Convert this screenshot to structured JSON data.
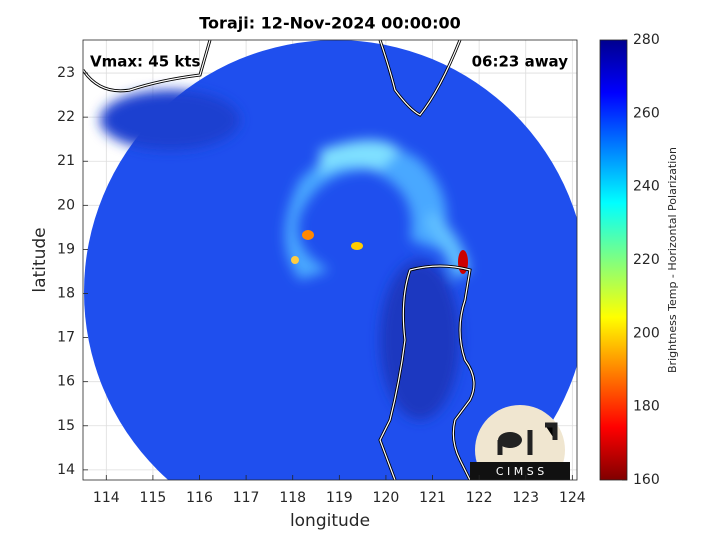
{
  "chart_data": {
    "type": "map",
    "title": "Toraji: 12-Nov-2024 00:00:00",
    "annotation_left": "Vmax: 45 kts",
    "annotation_right": "06:23 away",
    "xlabel": "longitude",
    "ylabel": "latitude",
    "xlim": [
      113.5,
      124.1
    ],
    "ylim": [
      13.77,
      23.75
    ],
    "xticks": [
      114,
      115,
      116,
      117,
      118,
      119,
      120,
      121,
      122,
      123,
      124
    ],
    "yticks": [
      14,
      15,
      16,
      17,
      18,
      19,
      20,
      21,
      22,
      23
    ],
    "grid": true,
    "colorbar": {
      "label": "Brightness Temp - Horizontal Polarization",
      "lim": [
        160,
        280
      ],
      "ticks": [
        160,
        180,
        200,
        220,
        240,
        260,
        280
      ]
    },
    "logo": "C I M S S"
  }
}
